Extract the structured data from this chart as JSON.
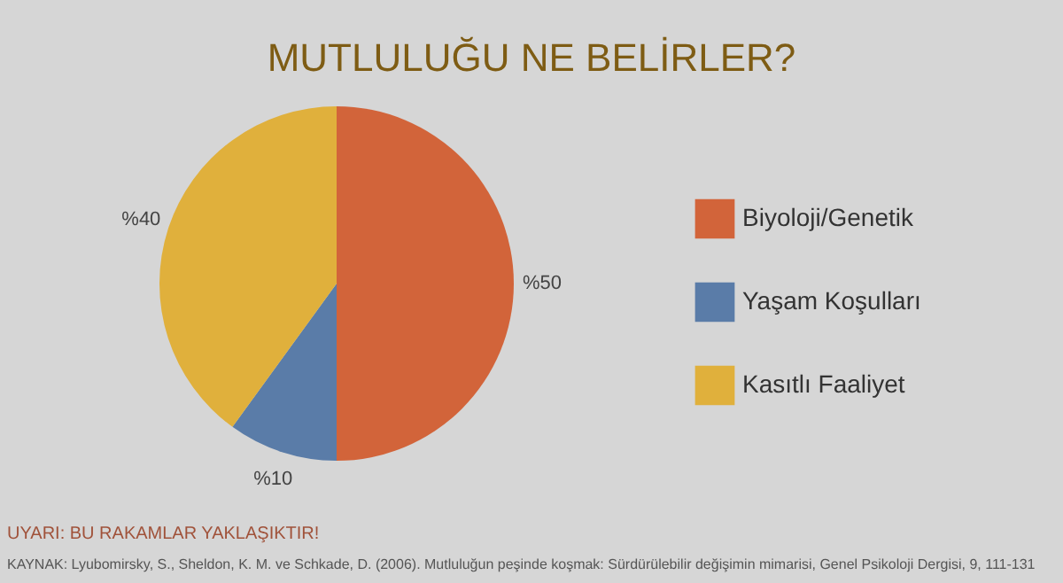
{
  "chart_data": {
    "type": "pie",
    "title": "MUTLULUĞU NE BELİRLER?",
    "categories": [
      "Biyoloji/Genetik",
      "Yaşam Koşulları",
      "Kasıtlı Faaliyet"
    ],
    "values": [
      50,
      10,
      40
    ],
    "colors": [
      "#d2643a",
      "#5a7ca8",
      "#e0b03c"
    ],
    "value_labels": [
      "%50",
      "%10",
      "%40"
    ],
    "legend": "right",
    "annotations": [
      "UYARI: BU RAKAMLAR YAKLAŞIKTIR!",
      "KAYNAK: Lyubomirsky, S., Sheldon, K. M. ve Schkade, D. (2006). Mutluluğun peşinde koşmak: Sürdürülebilir değişimin mimarisi, Genel Psikoloji Dergisi, 9, 111-131"
    ]
  }
}
